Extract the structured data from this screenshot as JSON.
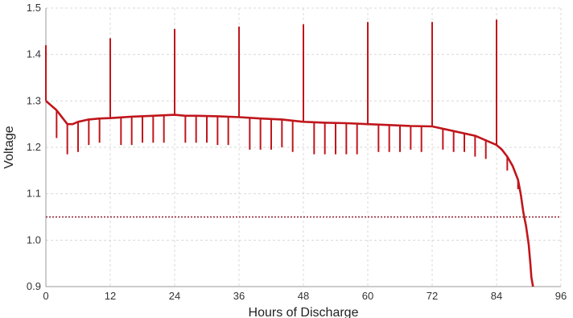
{
  "chart_data": {
    "type": "line",
    "title": "",
    "xlabel": "Hours of Discharge",
    "ylabel": "Voltage",
    "xlim": [
      0,
      96
    ],
    "ylim": [
      0.9,
      1.5
    ],
    "x_ticks": [
      0,
      12,
      24,
      36,
      48,
      60,
      72,
      84,
      96
    ],
    "x_tick_labels": [
      "0",
      "12",
      "24",
      "36",
      "48",
      "60",
      "72",
      "84",
      "96"
    ],
    "y_ticks": [
      0.9,
      1.0,
      1.1,
      1.2,
      1.3,
      1.4,
      1.5
    ],
    "y_tick_labels": [
      "0.9",
      "1.0",
      "1.1",
      "1.2",
      "1.3",
      "1.4",
      "1.5"
    ],
    "grid": true,
    "colors": {
      "series": "#c0161c",
      "reference": "#8b1a2b",
      "grid": "#d9d9d9",
      "axis": "#999999"
    },
    "series": [
      {
        "x": [
          0,
          2,
          4,
          5,
          6,
          8,
          10,
          12,
          16,
          20,
          24,
          26,
          28,
          32,
          36,
          40,
          44,
          48,
          52,
          56,
          60,
          64,
          68,
          72,
          76,
          80,
          84,
          85,
          86,
          87,
          88,
          88.5,
          89,
          89.5,
          90,
          90.3,
          90.5,
          90.8
        ],
        "y": [
          1.3,
          1.28,
          1.25,
          1.25,
          1.255,
          1.26,
          1.262,
          1.263,
          1.266,
          1.268,
          1.27,
          1.268,
          1.268,
          1.267,
          1.265,
          1.262,
          1.26,
          1.255,
          1.253,
          1.252,
          1.25,
          1.248,
          1.246,
          1.245,
          1.235,
          1.225,
          1.205,
          1.195,
          1.18,
          1.16,
          1.13,
          1.1,
          1.06,
          1.03,
          0.99,
          0.95,
          0.92,
          0.9
        ],
        "pulse_peaks": [
          {
            "x": 0,
            "y": 1.42
          },
          {
            "x": 12,
            "y": 1.435
          },
          {
            "x": 24,
            "y": 1.455
          },
          {
            "x": 36,
            "y": 1.46
          },
          {
            "x": 48,
            "y": 1.465
          },
          {
            "x": 60,
            "y": 1.47
          },
          {
            "x": 72,
            "y": 1.47
          },
          {
            "x": 84,
            "y": 1.475
          }
        ],
        "load_dips": [
          {
            "x": 2,
            "y": 1.22
          },
          {
            "x": 4,
            "y": 1.185
          },
          {
            "x": 6,
            "y": 1.19
          },
          {
            "x": 8,
            "y": 1.205
          },
          {
            "x": 10,
            "y": 1.21
          },
          {
            "x": 14,
            "y": 1.205
          },
          {
            "x": 16,
            "y": 1.205
          },
          {
            "x": 18,
            "y": 1.21
          },
          {
            "x": 20,
            "y": 1.21
          },
          {
            "x": 22,
            "y": 1.21
          },
          {
            "x": 26,
            "y": 1.21
          },
          {
            "x": 28,
            "y": 1.21
          },
          {
            "x": 30,
            "y": 1.21
          },
          {
            "x": 32,
            "y": 1.205
          },
          {
            "x": 34,
            "y": 1.205
          },
          {
            "x": 38,
            "y": 1.195
          },
          {
            "x": 40,
            "y": 1.195
          },
          {
            "x": 42,
            "y": 1.195
          },
          {
            "x": 44,
            "y": 1.2
          },
          {
            "x": 46,
            "y": 1.19
          },
          {
            "x": 50,
            "y": 1.185
          },
          {
            "x": 52,
            "y": 1.185
          },
          {
            "x": 54,
            "y": 1.185
          },
          {
            "x": 56,
            "y": 1.185
          },
          {
            "x": 58,
            "y": 1.185
          },
          {
            "x": 62,
            "y": 1.19
          },
          {
            "x": 64,
            "y": 1.19
          },
          {
            "x": 66,
            "y": 1.19
          },
          {
            "x": 68,
            "y": 1.195
          },
          {
            "x": 70,
            "y": 1.19
          },
          {
            "x": 74,
            "y": 1.195
          },
          {
            "x": 76,
            "y": 1.19
          },
          {
            "x": 78,
            "y": 1.19
          },
          {
            "x": 80,
            "y": 1.18
          },
          {
            "x": 82,
            "y": 1.175
          },
          {
            "x": 86,
            "y": 1.15
          },
          {
            "x": 88,
            "y": 1.11
          }
        ]
      }
    ],
    "reference_line": {
      "y": 1.05,
      "style": "dotted"
    }
  }
}
